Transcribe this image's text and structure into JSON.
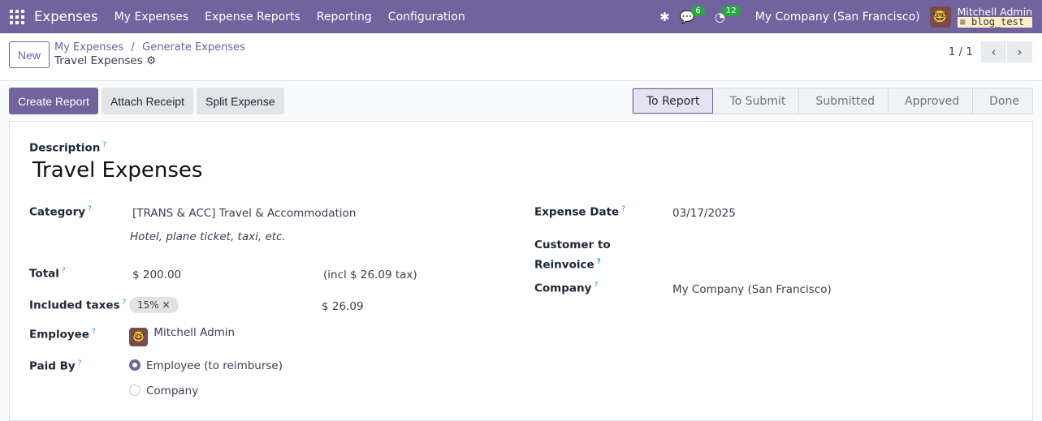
{
  "nav": {
    "brand": "Expenses",
    "menus": [
      "My Expenses",
      "Expense Reports",
      "Reporting",
      "Configuration"
    ],
    "messages_count": "6",
    "activities_count": "12",
    "company": "My Company (San Francisco)",
    "user": "Mitchell Admin",
    "database": "blog_test"
  },
  "control": {
    "new_label": "New",
    "breadcrumbs": [
      "My Expenses",
      "Generate Expenses"
    ],
    "current": "Travel Expenses",
    "pager": "1 / 1"
  },
  "actions": {
    "create_report": "Create Report",
    "attach_receipt": "Attach Receipt",
    "split_expense": "Split Expense"
  },
  "stages": [
    {
      "label": "To Report",
      "active": true
    },
    {
      "label": "To Submit"
    },
    {
      "label": "Submitted"
    },
    {
      "label": "Approved"
    },
    {
      "label": "Done"
    }
  ],
  "form": {
    "description_label": "Description",
    "description": "Travel Expenses",
    "category_label": "Category",
    "category": "[TRANS & ACC] Travel & Accommodation",
    "category_note": "Hotel, plane ticket, taxi, etc.",
    "total_label": "Total",
    "total": "$ 200.00",
    "total_tax_note": "(incl $ 26.09 tax)",
    "taxes_label": "Included taxes",
    "tax_tag": "15%",
    "tax_amount": "$ 26.09",
    "employee_label": "Employee",
    "employee": "Mitchell Admin",
    "paid_by_label": "Paid By",
    "paid_by_options": [
      "Employee (to reimburse)",
      "Company"
    ],
    "paid_by_selected": "Employee (to reimburse)",
    "date_label": "Expense Date",
    "date": "03/17/2025",
    "reinvoice_label_1": "Customer to",
    "reinvoice_label_2": "Reinvoice",
    "company_label": "Company",
    "company": "My Company (San Francisco)"
  },
  "colors": {
    "brand": "#71639e",
    "badge": "#28a745"
  }
}
